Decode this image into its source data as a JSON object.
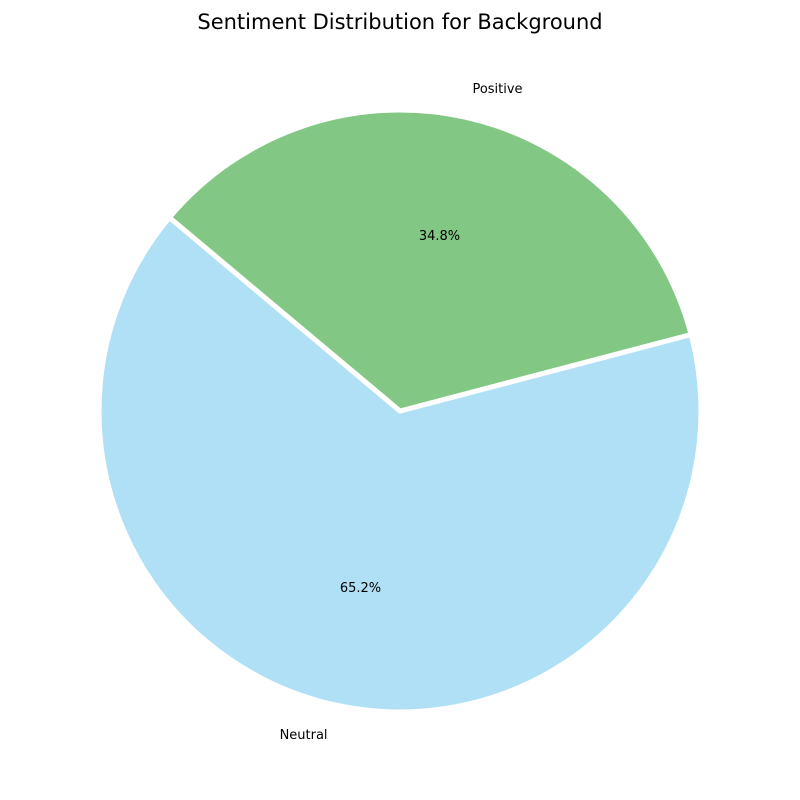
{
  "chart_data": {
    "type": "pie",
    "title": "Sentiment Distribution for Background",
    "slices": [
      {
        "label": "Neutral",
        "value": 65.2,
        "pct_label": "65.2%",
        "color": "#b0e0f6"
      },
      {
        "label": "Positive",
        "value": 34.8,
        "pct_label": "34.8%",
        "color": "#82c884"
      }
    ],
    "start_angle_deg": 140,
    "direction": "counterclockwise",
    "edge_color": "#ffffff"
  }
}
